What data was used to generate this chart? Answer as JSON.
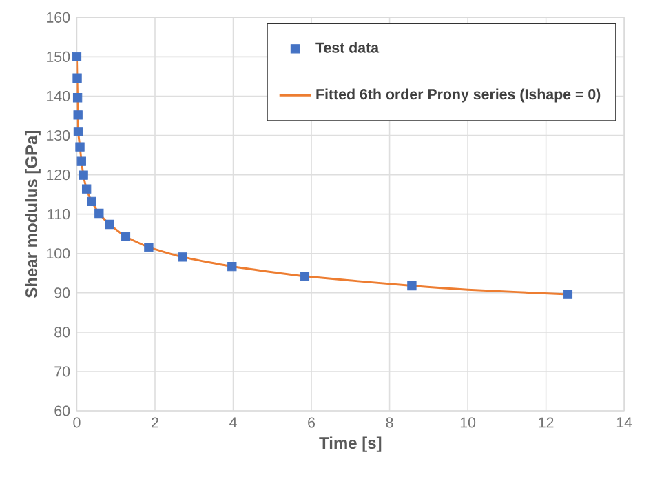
{
  "chart_data": {
    "type": "scatter",
    "xlabel": "Time [s]",
    "ylabel": "Shear modulus [GPa]",
    "xlim": [
      0,
      14
    ],
    "ylim": [
      60,
      160
    ],
    "xticks": [
      0,
      2,
      4,
      6,
      8,
      10,
      12,
      14
    ],
    "yticks": [
      60,
      70,
      80,
      90,
      100,
      110,
      120,
      130,
      140,
      150,
      160
    ],
    "grid": true,
    "legend": "top right",
    "series": [
      {
        "name": "Test data",
        "marker": "square",
        "color": "#4472c4",
        "x": [
          0,
          0.01,
          0.02,
          0.03,
          0.035,
          0.08,
          0.12,
          0.17,
          0.25,
          0.38,
          0.57,
          0.84,
          1.25,
          1.84,
          2.71,
          3.97,
          5.83,
          8.57,
          12.56
        ],
        "values": [
          150,
          144.6,
          139.6,
          135.2,
          131,
          127.1,
          123.4,
          119.9,
          116.4,
          113.2,
          110.2,
          107.4,
          104.3,
          101.6,
          99.1,
          96.7,
          94.2,
          91.8,
          89.6
        ]
      },
      {
        "name": "Fitted 6th order Prony series (Ishape = 0)",
        "type": "line",
        "marker": "none",
        "line_style": "solid",
        "color": "#ed7d31",
        "x": [
          0,
          0.01,
          0.02,
          0.03,
          0.035,
          0.08,
          0.12,
          0.17,
          0.25,
          0.38,
          0.57,
          0.84,
          1.25,
          1.84,
          2.71,
          3.97,
          5.83,
          8.57,
          10,
          12.56
        ],
        "values": [
          150,
          144.6,
          139.6,
          135.2,
          131,
          127.1,
          123.4,
          119.9,
          116.4,
          113.2,
          110.2,
          107.4,
          104.3,
          101.6,
          99.1,
          96.7,
          94.2,
          91.8,
          90.8,
          89.6
        ]
      }
    ]
  }
}
